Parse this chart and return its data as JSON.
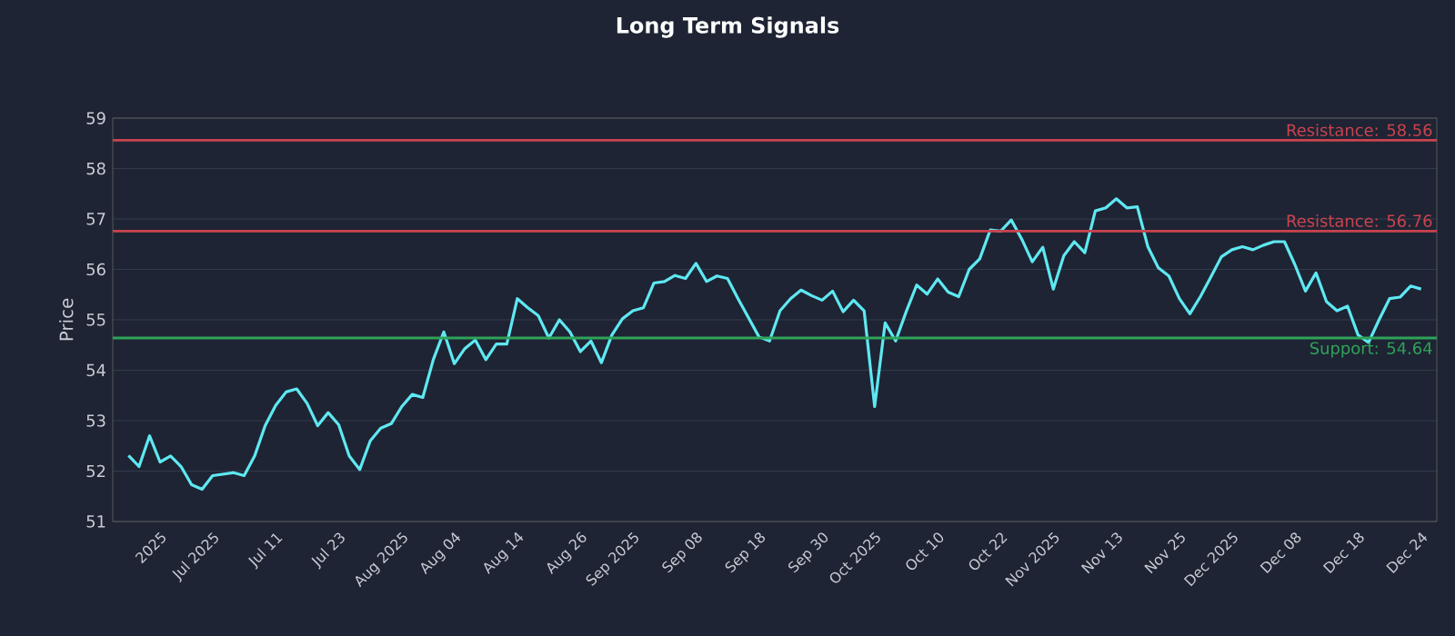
{
  "chart_data": {
    "type": "line",
    "title": "Long Term Signals",
    "ylabel": "Price",
    "categories": [
      null,
      null,
      null,
      "2025",
      null,
      null,
      null,
      null,
      "Jul 2025",
      null,
      null,
      null,
      null,
      null,
      "Jul 11",
      null,
      null,
      null,
      null,
      null,
      "Jul 23",
      null,
      null,
      null,
      null,
      null,
      "Aug 2025",
      null,
      null,
      null,
      null,
      "Aug 04",
      null,
      null,
      null,
      null,
      null,
      "Aug 14",
      null,
      null,
      null,
      null,
      null,
      "Aug 26",
      null,
      null,
      null,
      null,
      "Sep 2025",
      null,
      null,
      null,
      null,
      null,
      "Sep 08",
      null,
      null,
      null,
      null,
      null,
      "Sep 18",
      null,
      null,
      null,
      null,
      null,
      "Sep 30",
      null,
      null,
      null,
      null,
      "Oct 2025",
      null,
      null,
      null,
      null,
      null,
      "Oct 10",
      null,
      null,
      null,
      null,
      null,
      "Oct 22",
      null,
      null,
      null,
      null,
      "Nov 2025",
      null,
      null,
      null,
      null,
      null,
      "Nov 13",
      null,
      null,
      null,
      null,
      null,
      "Nov 25",
      null,
      null,
      null,
      null,
      "Dec 2025",
      null,
      null,
      null,
      null,
      null,
      "Dec 08",
      null,
      null,
      null,
      null,
      null,
      "Dec 18",
      null,
      null,
      null,
      null,
      null,
      "Dec 24"
    ],
    "series": [
      {
        "color": "#5ee8f2",
        "values": [
          52.31,
          52.09,
          52.7,
          52.18,
          52.3,
          52.09,
          51.73,
          51.64,
          51.91,
          51.94,
          51.97,
          51.91,
          52.3,
          52.9,
          53.3,
          53.57,
          53.63,
          53.34,
          52.9,
          53.16,
          52.92,
          52.3,
          52.03,
          52.6,
          52.85,
          52.94,
          53.28,
          53.52,
          53.46,
          54.21,
          54.76,
          54.13,
          54.43,
          54.6,
          54.21,
          54.52,
          54.52,
          55.42,
          55.24,
          55.08,
          54.64,
          55.0,
          54.76,
          54.37,
          54.58,
          54.15,
          54.7,
          55.02,
          55.18,
          55.24,
          55.73,
          55.76,
          55.88,
          55.82,
          56.12,
          55.76,
          55.87,
          55.82,
          55.42,
          55.04,
          54.66,
          54.58,
          55.18,
          55.42,
          55.59,
          55.48,
          55.39,
          55.57,
          55.16,
          55.39,
          55.18,
          53.28,
          54.94,
          54.58,
          55.16,
          55.69,
          55.51,
          55.81,
          55.55,
          55.46,
          56.0,
          56.21,
          56.78,
          56.76,
          56.98,
          56.6,
          56.15,
          56.44,
          55.61,
          56.27,
          56.55,
          56.33,
          57.16,
          57.22,
          57.4,
          57.22,
          57.24,
          56.45,
          56.03,
          55.87,
          55.42,
          55.12,
          55.46,
          55.85,
          56.25,
          56.39,
          56.45,
          56.39,
          56.48,
          56.55,
          56.55,
          56.09,
          55.57,
          55.93,
          55.36,
          55.18,
          55.27,
          54.7,
          54.55,
          55.0,
          55.42,
          55.45,
          55.67,
          55.61
        ]
      }
    ],
    "ylim": [
      51,
      59
    ],
    "yticks": [
      51,
      52,
      53,
      54,
      55,
      56,
      57,
      58,
      59
    ],
    "grid": "y",
    "ref_lines": [
      {
        "axis": "y",
        "value": 58.56,
        "label": "Resistance: 58.56",
        "color": "#c9434f"
      },
      {
        "axis": "y",
        "value": 56.76,
        "label": "Resistance: 56.76",
        "color": "#c9434f"
      },
      {
        "axis": "y",
        "value": 54.64,
        "label": "Support: 54.64",
        "color": "#2fa35a"
      }
    ]
  }
}
